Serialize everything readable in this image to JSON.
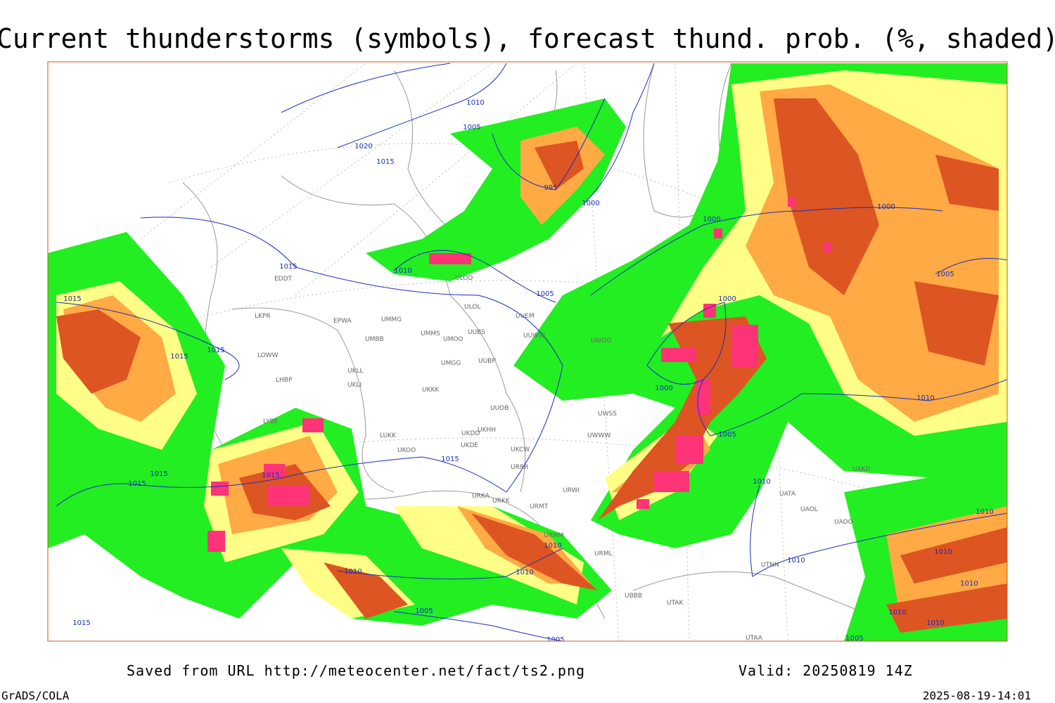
{
  "header": {
    "title": "Current thunderstorms (symbols), forecast thund. prob. (%, shaded)"
  },
  "footer": {
    "source": "Saved from URL http://meteocenter.net/fact/ts2.png",
    "valid": "Valid: 20250819 14Z",
    "software": "GrADS/COLA",
    "timestamp": "2025-08-19-14:01"
  },
  "map": {
    "isobar_labels": [
      "1015",
      "1015",
      "1015",
      "1015",
      "1015",
      "1015",
      "1015",
      "1015",
      "1010",
      "1005",
      "1020",
      "1015",
      "995",
      "1000",
      "1010",
      "1015",
      "1005",
      "1000",
      "1000",
      "1005",
      "1000",
      "1000",
      "1005",
      "1010",
      "1010",
      "1010",
      "1010",
      "1010",
      "1010",
      "1005",
      "1005",
      "1005",
      "1010",
      "1010",
      "1010",
      "1010",
      "1010"
    ],
    "stations": [
      "EDDT",
      "LKPR",
      "LOWW",
      "LHBP",
      "LYBE",
      "LUKK",
      "UKOO",
      "EPWA",
      "UMMG",
      "UMBB",
      "UKLL",
      "UKLI",
      "UKKK",
      "UMMS",
      "UMOO",
      "UMGG",
      "UUBS",
      "UUBP",
      "UUEM",
      "UUWW",
      "UUOB",
      "UKHH",
      "UKDD",
      "UKDE",
      "UKCW",
      "URRR",
      "URWI",
      "URMT",
      "URKA",
      "URKK",
      "URMM",
      "URML",
      "UBBB",
      "UTAK",
      "UATA",
      "UAOL",
      "UAOO",
      "UTNN",
      "UTAA",
      "UAKD",
      "UWSS",
      "UWWW",
      "ULOL",
      "ULOD",
      "UWGG"
    ]
  }
}
